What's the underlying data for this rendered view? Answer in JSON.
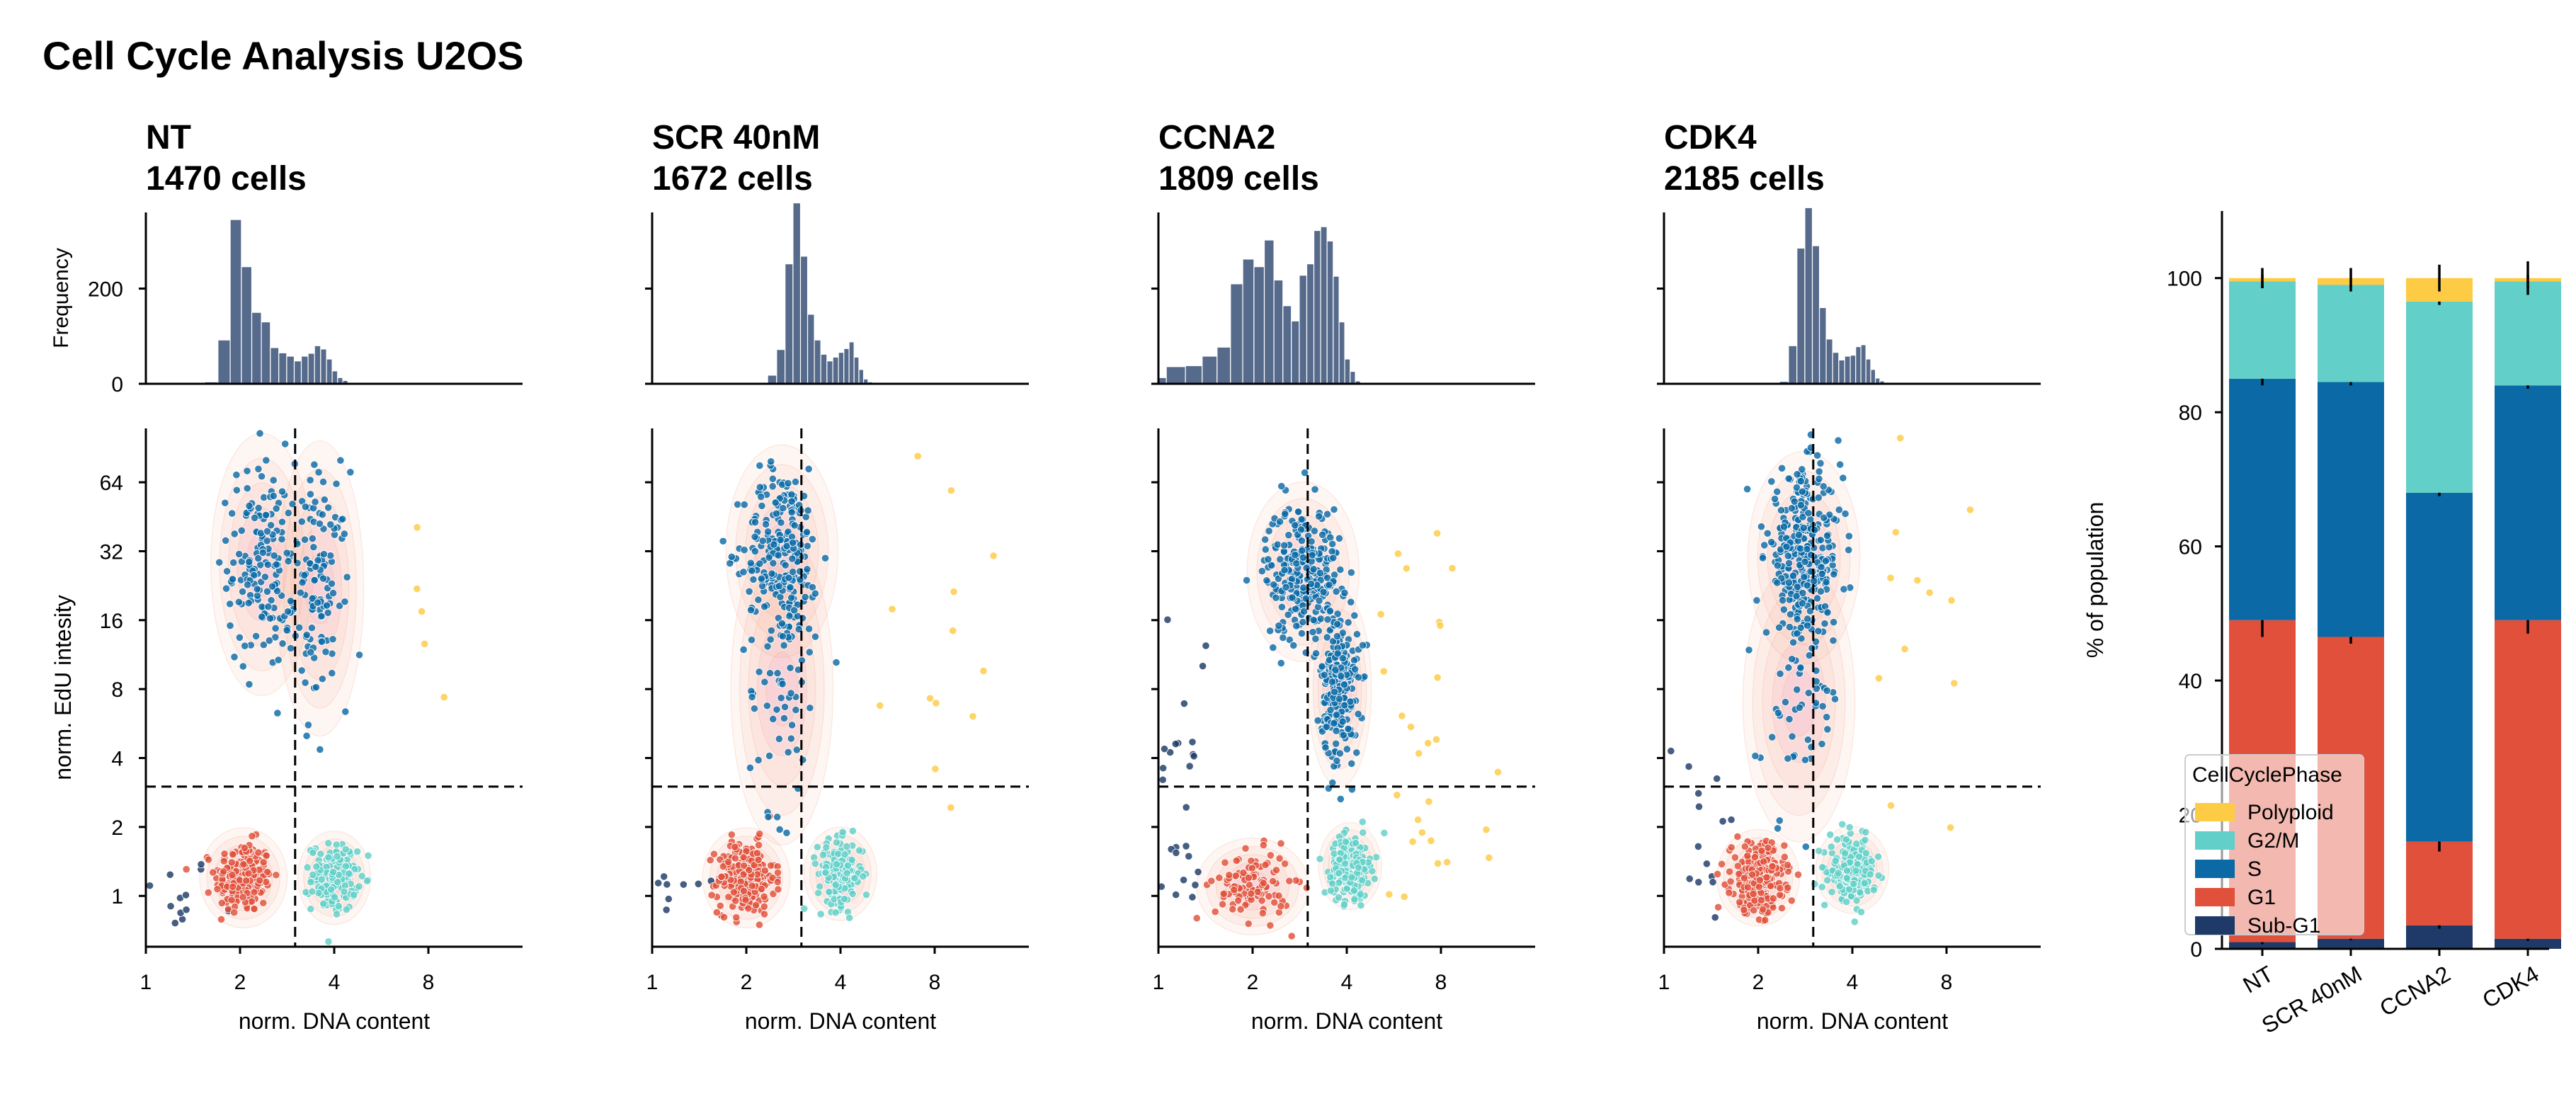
{
  "figure": {
    "title": "Cell Cycle Analysis U2OS",
    "colors": {
      "Sub-G1": "#1f3a68",
      "G1": "#e0503b",
      "S": "#0b6aa6",
      "G2/M": "#62cfc8",
      "Polyploid": "#fecb44",
      "hist_bar": "#566a8c",
      "kde": "#f19a7c",
      "axis": "#000000"
    }
  },
  "chart_data": [
    {
      "type": "bar",
      "panel": "NT",
      "title": "NT",
      "subtitle": "1470 cells",
      "ylabel": "Frequency",
      "yticks": [
        0,
        200
      ],
      "bin_edges": [
        0.9,
        1.06,
        1.22,
        1.38,
        1.54,
        1.7,
        1.86,
        2.02,
        2.18,
        2.34,
        2.5,
        2.66,
        2.82,
        2.98,
        3.14,
        3.3,
        3.46,
        3.62,
        3.78,
        3.94,
        4.1,
        4.26,
        4.42,
        4.58,
        4.74,
        4.9,
        5.06,
        5.22
      ],
      "values": [
        0,
        0,
        0,
        0,
        4,
        92,
        345,
        246,
        150,
        130,
        76,
        65,
        58,
        48,
        58,
        64,
        80,
        73,
        52,
        27,
        13,
        7,
        3,
        3,
        0,
        0,
        0
      ]
    },
    {
      "type": "bar",
      "panel": "SCR 40nM",
      "title": "SCR 40nM",
      "subtitle": "1672 cells",
      "ylabel": "",
      "yticks": [
        0,
        200
      ],
      "bin_edges": [
        0.9,
        1.06,
        1.22,
        1.38,
        1.54,
        1.7,
        1.86,
        2.02,
        2.18,
        2.34,
        2.5,
        2.66,
        2.82,
        2.98,
        3.14,
        3.3,
        3.46,
        3.62,
        3.78,
        3.94,
        4.1,
        4.26,
        4.42,
        4.58,
        4.74,
        4.9,
        5.06,
        5.22
      ],
      "values": [
        0,
        0,
        0,
        0,
        0,
        0,
        0,
        0,
        0,
        18,
        72,
        252,
        380,
        268,
        146,
        92,
        62,
        48,
        56,
        66,
        74,
        88,
        56,
        30,
        10,
        4,
        0
      ]
    },
    {
      "type": "bar",
      "panel": "CCNA2",
      "title": "CCNA2",
      "subtitle": "1809 cells",
      "ylabel": "",
      "yticks": [
        0,
        200
      ],
      "bin_edges": [
        0.9,
        1.06,
        1.22,
        1.38,
        1.54,
        1.7,
        1.86,
        2.02,
        2.18,
        2.34,
        2.5,
        2.66,
        2.82,
        2.98,
        3.14,
        3.3,
        3.46,
        3.62,
        3.78,
        3.94,
        4.1,
        4.26,
        4.42,
        4.58,
        4.74,
        4.9,
        5.06,
        5.22
      ],
      "values": [
        13,
        36,
        38,
        58,
        77,
        210,
        262,
        246,
        302,
        218,
        164,
        132,
        228,
        252,
        322,
        330,
        300,
        226,
        130,
        52,
        26,
        6,
        0,
        0,
        0,
        0,
        0
      ]
    },
    {
      "type": "bar",
      "panel": "CDK4",
      "title": "CDK4",
      "subtitle": "2185 cells",
      "ylabel": "",
      "yticks": [
        0,
        200
      ],
      "bin_edges": [
        0.9,
        1.06,
        1.22,
        1.38,
        1.54,
        1.7,
        1.86,
        2.02,
        2.18,
        2.34,
        2.5,
        2.66,
        2.82,
        2.98,
        3.14,
        3.3,
        3.46,
        3.62,
        3.78,
        3.94,
        4.1,
        4.26,
        4.42,
        4.58,
        4.74,
        4.9,
        5.06,
        5.22
      ],
      "values": [
        0,
        0,
        0,
        0,
        0,
        0,
        0,
        0,
        0,
        5,
        80,
        285,
        370,
        290,
        160,
        94,
        66,
        50,
        58,
        60,
        78,
        82,
        52,
        30,
        12,
        6,
        0
      ]
    },
    {
      "type": "scatter",
      "panel": "NT",
      "xlabel": "norm. DNA content",
      "ylabel": "norm. EdU intesity",
      "xscale": "log2",
      "yscale": "log2",
      "xlim": [
        1,
        16
      ],
      "ylim": [
        0.6,
        110
      ],
      "xticks": [
        1,
        2,
        4,
        8
      ],
      "yticks": [
        1,
        2,
        4,
        8,
        16,
        32,
        64
      ],
      "gates": {
        "dna": 3.0,
        "edu": 3.0
      },
      "clusters": [
        {
          "phase": "Sub-G1",
          "n": 12,
          "x_center": 1.25,
          "y_center": 1.0,
          "x_spread": 0.2,
          "y_spread": 0.3
        },
        {
          "phase": "G1",
          "n": 230,
          "x_center": 2.05,
          "y_center": 1.2,
          "x_spread": 0.15,
          "y_spread": 0.26
        },
        {
          "phase": "S",
          "n": 160,
          "x_center": 2.35,
          "y_center": 28,
          "x_spread": 0.18,
          "y_spread": 0.75
        },
        {
          "phase": "S",
          "n": 120,
          "x_center": 3.6,
          "y_center": 22,
          "x_spread": 0.15,
          "y_spread": 0.85
        },
        {
          "phase": "G2/M",
          "n": 160,
          "x_center": 4.0,
          "y_center": 1.2,
          "x_spread": 0.12,
          "y_spread": 0.24
        },
        {
          "phase": "Polyploid",
          "n": 5,
          "x_center": 7.5,
          "y_center": 10,
          "x_spread": 0.2,
          "y_spread": 1.5
        }
      ]
    },
    {
      "type": "scatter",
      "panel": "SCR 40nM",
      "xlabel": "norm. DNA content",
      "ylabel": "",
      "xscale": "log2",
      "yscale": "log2",
      "xlim": [
        1,
        16
      ],
      "ylim": [
        0.6,
        110
      ],
      "xticks": [
        1,
        2,
        4,
        8
      ],
      "yticks": [
        1,
        2,
        4,
        8,
        16,
        32,
        64
      ],
      "gates": {
        "dna": 3.0,
        "edu": 3.0
      },
      "clusters": [
        {
          "phase": "Sub-G1",
          "n": 10,
          "x_center": 1.2,
          "y_center": 1.0,
          "x_spread": 0.2,
          "y_spread": 0.3
        },
        {
          "phase": "G1",
          "n": 260,
          "x_center": 2.0,
          "y_center": 1.2,
          "x_spread": 0.15,
          "y_spread": 0.26
        },
        {
          "phase": "S",
          "n": 230,
          "x_center": 2.6,
          "y_center": 32,
          "x_spread": 0.2,
          "y_spread": 0.6
        },
        {
          "phase": "S",
          "n": 60,
          "x_center": 2.6,
          "y_center": 8,
          "x_spread": 0.18,
          "y_spread": 0.9
        },
        {
          "phase": "G2/M",
          "n": 170,
          "x_center": 4.0,
          "y_center": 1.25,
          "x_spread": 0.12,
          "y_spread": 0.24
        },
        {
          "phase": "Polyploid",
          "n": 14,
          "x_center": 8.0,
          "y_center": 12,
          "x_spread": 0.35,
          "y_spread": 2.0
        }
      ]
    },
    {
      "type": "scatter",
      "panel": "CCNA2",
      "xlabel": "norm. DNA content",
      "ylabel": "",
      "xscale": "log2",
      "yscale": "log2",
      "xlim": [
        1,
        16
      ],
      "ylim": [
        0.6,
        110
      ],
      "xticks": [
        1,
        2,
        4,
        8
      ],
      "yticks": [
        1,
        2,
        4,
        8,
        16,
        32,
        64
      ],
      "gates": {
        "dna": 3.0,
        "edu": 3.0
      },
      "clusters": [
        {
          "phase": "Sub-G1",
          "n": 30,
          "x_center": 1.2,
          "y_center": 3.0,
          "x_spread": 0.15,
          "y_spread": 1.6
        },
        {
          "phase": "G1",
          "n": 110,
          "x_center": 2.0,
          "y_center": 1.1,
          "x_spread": 0.2,
          "y_spread": 0.25
        },
        {
          "phase": "S",
          "n": 280,
          "x_center": 2.9,
          "y_center": 26,
          "x_spread": 0.2,
          "y_spread": 0.5
        },
        {
          "phase": "S",
          "n": 220,
          "x_center": 3.8,
          "y_center": 8,
          "x_spread": 0.1,
          "y_spread": 0.55
        },
        {
          "phase": "G2/M",
          "n": 260,
          "x_center": 4.1,
          "y_center": 1.35,
          "x_spread": 0.1,
          "y_spread": 0.22
        },
        {
          "phase": "Polyploid",
          "n": 28,
          "x_center": 7.0,
          "y_center": 4.0,
          "x_spread": 0.35,
          "y_spread": 1.8
        }
      ]
    },
    {
      "type": "scatter",
      "panel": "CDK4",
      "xlabel": "norm. DNA content",
      "ylabel": "",
      "xscale": "log2",
      "yscale": "log2",
      "xlim": [
        1,
        16
      ],
      "ylim": [
        0.6,
        110
      ],
      "xticks": [
        1,
        2,
        4,
        8
      ],
      "yticks": [
        1,
        2,
        4,
        8,
        16,
        32,
        64
      ],
      "gates": {
        "dna": 3.0,
        "edu": 3.0
      },
      "clusters": [
        {
          "phase": "Sub-G1",
          "n": 14,
          "x_center": 1.3,
          "y_center": 1.5,
          "x_spread": 0.2,
          "y_spread": 1.0
        },
        {
          "phase": "G1",
          "n": 300,
          "x_center": 2.0,
          "y_center": 1.2,
          "x_spread": 0.14,
          "y_spread": 0.25
        },
        {
          "phase": "S",
          "n": 320,
          "x_center": 2.8,
          "y_center": 30,
          "x_spread": 0.2,
          "y_spread": 0.6
        },
        {
          "phase": "S",
          "n": 50,
          "x_center": 2.7,
          "y_center": 7,
          "x_spread": 0.2,
          "y_spread": 0.8
        },
        {
          "phase": "G2/M",
          "n": 220,
          "x_center": 4.0,
          "y_center": 1.3,
          "x_spread": 0.12,
          "y_spread": 0.22
        },
        {
          "phase": "Polyploid",
          "n": 12,
          "x_center": 7.5,
          "y_center": 8,
          "x_spread": 0.35,
          "y_spread": 2.0
        }
      ]
    },
    {
      "type": "bar",
      "stacked": true,
      "categories": [
        "NT",
        "SCR 40nM",
        "CCNA2",
        "CDK4"
      ],
      "ylabel": "% of population",
      "ylim": [
        0,
        110
      ],
      "yticks": [
        0,
        20,
        40,
        60,
        80,
        100
      ],
      "legend": {
        "title": "CellCyclePhase",
        "placement": "lower-left",
        "order": [
          "Polyploid",
          "G2/M",
          "S",
          "G1",
          "Sub-G1"
        ]
      },
      "series": [
        {
          "name": "Sub-G1",
          "values": [
            1.0,
            1.5,
            3.5,
            1.5
          ],
          "errors": [
            0.3,
            0.2,
            0.5,
            0.3
          ]
        },
        {
          "name": "G1",
          "values": [
            48.0,
            45.0,
            12.5,
            47.5
          ],
          "errors": [
            2.5,
            1.0,
            1.5,
            2.0
          ]
        },
        {
          "name": "S",
          "values": [
            36.0,
            38.0,
            52.0,
            35.0
          ],
          "errors": [
            1.0,
            0.5,
            0.5,
            0.5
          ]
        },
        {
          "name": "G2/M",
          "values": [
            14.5,
            14.5,
            28.5,
            15.5
          ],
          "errors": [
            1.0,
            1.0,
            0.5,
            1.0
          ]
        },
        {
          "name": "Polyploid",
          "values": [
            0.5,
            1.0,
            3.5,
            0.5
          ],
          "errors": [
            1.5,
            1.5,
            2.0,
            2.5
          ]
        }
      ]
    }
  ]
}
